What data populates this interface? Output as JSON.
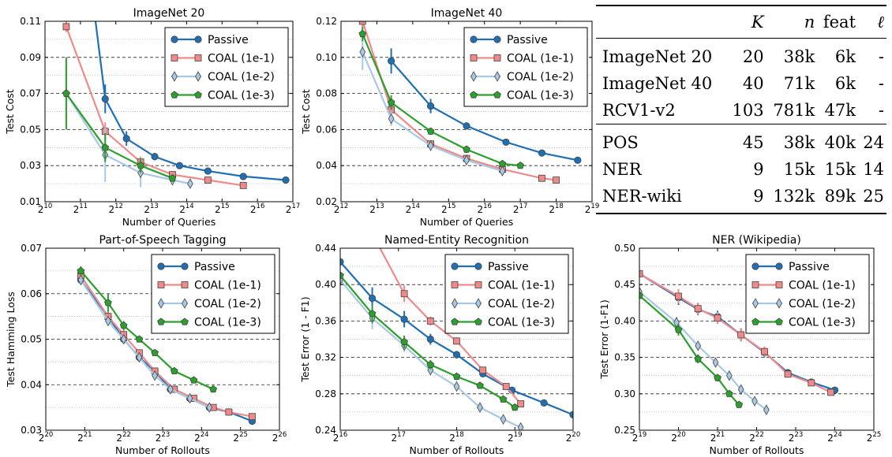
{
  "series_styles": {
    "Passive": {
      "color": "#1f6fb4",
      "marker": "circle"
    },
    "COAL (1e-1)": {
      "color": "#f08a8a",
      "marker": "square"
    },
    "COAL (1e-2)": {
      "color": "#a8c8e4",
      "marker": "diamond"
    },
    "COAL (1e-3)": {
      "color": "#2ca02c",
      "marker": "pentagon"
    }
  },
  "chart_data": [
    {
      "type": "line",
      "title": "ImageNet 20",
      "xlabel": "Number of Queries",
      "ylabel": "Test Cost",
      "xscale": "log2",
      "xlim": [
        10,
        17
      ],
      "xtick_exponents": [
        "10",
        "11",
        "12",
        "13",
        "14",
        "15",
        "16",
        "17"
      ],
      "ylim": [
        0.01,
        0.11
      ],
      "yticks": [
        "0.01",
        "0.03",
        "0.05",
        "0.07",
        "0.09",
        "0.11"
      ],
      "grid": "y",
      "legend": "top-right",
      "series": [
        {
          "name": "Passive",
          "x_exp": [
            11.3,
            11.7,
            12.3,
            13.1,
            13.8,
            14.6,
            15.6,
            16.8
          ],
          "y": [
            0.13,
            0.067,
            0.045,
            0.035,
            0.03,
            0.027,
            0.024,
            0.022
          ],
          "err": [
            0,
            0.008,
            0.004,
            0.002,
            0.001,
            0.001,
            0.001,
            0.001
          ]
        },
        {
          "name": "COAL (1e-1)",
          "x_exp": [
            10.6,
            11.7,
            12.7,
            13.6,
            14.6,
            15.6
          ],
          "y": [
            0.107,
            0.049,
            0.032,
            0.025,
            0.022,
            0.019
          ],
          "err": [
            0.003,
            0.005,
            0.003,
            0.001,
            0.001,
            0.001
          ]
        },
        {
          "name": "COAL (1e-2)",
          "x_exp": [
            10.6,
            11.7,
            12.7,
            13.6,
            14.1
          ],
          "y": [
            0.07,
            0.036,
            0.026,
            0.022,
            0.02
          ],
          "err": [
            0.015,
            0.015,
            0.008,
            0.003,
            0.001
          ]
        },
        {
          "name": "COAL (1e-3)",
          "x_exp": [
            10.6,
            11.7,
            12.7,
            13.6
          ],
          "y": [
            0.07,
            0.04,
            0.03,
            0.023
          ],
          "err": [
            0.02,
            0.008,
            0.004,
            0.002
          ]
        }
      ]
    },
    {
      "type": "line",
      "title": "ImageNet 40",
      "xlabel": "Number of Queries",
      "ylabel": "Test Cost",
      "xscale": "log2",
      "xlim": [
        12,
        19
      ],
      "xtick_exponents": [
        "12",
        "13",
        "14",
        "15",
        "16",
        "17",
        "18",
        "19"
      ],
      "ylim": [
        0.02,
        0.12
      ],
      "yticks": [
        "0.02",
        "0.04",
        "0.06",
        "0.08",
        "0.10",
        "0.12"
      ],
      "grid": "y",
      "legend": "top-right",
      "series": [
        {
          "name": "Passive",
          "x_exp": [
            13.4,
            14.5,
            15.5,
            16.6,
            17.6,
            18.6
          ],
          "y": [
            0.098,
            0.073,
            0.062,
            0.053,
            0.047,
            0.043
          ],
          "err": [
            0.007,
            0.004,
            0.002,
            0.001,
            0.001,
            0.001
          ]
        },
        {
          "name": "COAL (1e-1)",
          "x_exp": [
            12.6,
            13.4,
            14.5,
            15.5,
            16.5,
            17.6,
            18.0
          ],
          "y": [
            0.12,
            0.071,
            0.052,
            0.044,
            0.038,
            0.033,
            0.032
          ],
          "err": [
            0.003,
            0.004,
            0.002,
            0.002,
            0.001,
            0.001,
            0.001
          ]
        },
        {
          "name": "COAL (1e-2)",
          "x_exp": [
            12.6,
            13.4,
            14.5,
            15.5,
            16.5
          ],
          "y": [
            0.103,
            0.066,
            0.051,
            0.043,
            0.037
          ],
          "err": [
            0.01,
            0.004,
            0.002,
            0.002,
            0.001
          ]
        },
        {
          "name": "COAL (1e-3)",
          "x_exp": [
            12.6,
            13.4,
            14.5,
            15.5,
            16.5,
            17.0
          ],
          "y": [
            0.113,
            0.075,
            0.059,
            0.049,
            0.041,
            0.04
          ],
          "err": [
            0.004,
            0.004,
            0.002,
            0.002,
            0.001,
            0.001
          ]
        }
      ]
    },
    {
      "type": "line",
      "title": "Part-of-Speech Tagging",
      "xlabel": "Number of Rollouts",
      "ylabel": "Test Hamming Loss",
      "xscale": "log2",
      "xlim": [
        20,
        26
      ],
      "xtick_exponents": [
        "20",
        "21",
        "22",
        "23",
        "24",
        "25",
        "26"
      ],
      "ylim": [
        0.03,
        0.07
      ],
      "yticks": [
        "0.03",
        "0.04",
        "0.05",
        "0.06",
        "0.07"
      ],
      "grid": "y",
      "legend": "top-right",
      "series": [
        {
          "name": "Passive",
          "x_exp": [
            20.9,
            21.6,
            22.0,
            22.4,
            22.8,
            23.2,
            23.7,
            24.2,
            24.7,
            25.3
          ],
          "y": [
            0.063,
            0.055,
            0.05,
            0.046,
            0.043,
            0.039,
            0.037,
            0.035,
            0.034,
            0.032
          ],
          "err": [
            0.001,
            0.001,
            0.001,
            0.0005,
            0.0005,
            0.0005,
            0.0005,
            0.0005,
            0.0005,
            0.0005
          ]
        },
        {
          "name": "COAL (1e-1)",
          "x_exp": [
            20.9,
            21.6,
            22.0,
            22.4,
            22.8,
            23.3,
            23.8,
            24.3,
            24.7,
            25.3
          ],
          "y": [
            0.064,
            0.055,
            0.051,
            0.047,
            0.043,
            0.039,
            0.037,
            0.035,
            0.034,
            0.033
          ],
          "err": [
            0.001,
            0.001,
            0.001,
            0.0005,
            0.0005,
            0.0005,
            0.0005,
            0.0005,
            0.0005,
            0.0005
          ]
        },
        {
          "name": "COAL (1e-2)",
          "x_exp": [
            20.9,
            21.6,
            22.0,
            22.4,
            22.8,
            23.2,
            23.7,
            24.2
          ],
          "y": [
            0.063,
            0.054,
            0.05,
            0.046,
            0.042,
            0.039,
            0.037,
            0.035
          ],
          "err": [
            0.001,
            0.001,
            0.001,
            0.0005,
            0.0005,
            0.0005,
            0.0005,
            0.0005
          ]
        },
        {
          "name": "COAL (1e-3)",
          "x_exp": [
            20.9,
            21.6,
            22.0,
            22.4,
            22.8,
            23.3,
            23.8,
            24.3
          ],
          "y": [
            0.065,
            0.058,
            0.053,
            0.05,
            0.047,
            0.043,
            0.041,
            0.039
          ],
          "err": [
            0.001,
            0.002,
            0.001,
            0.0005,
            0.0005,
            0.0005,
            0.0005,
            0.0005
          ]
        }
      ]
    },
    {
      "type": "line",
      "title": "Named-Entity Recognition",
      "xlabel": "Number of Rollouts",
      "ylabel": "Test Error (1 - F1)",
      "xscale": "log2",
      "xlim": [
        16,
        20
      ],
      "xtick_exponents": [
        "16",
        "17",
        "18",
        "19",
        "20"
      ],
      "ylim": [
        0.24,
        0.44
      ],
      "yticks": [
        "0.24",
        "0.28",
        "0.32",
        "0.36",
        "0.40",
        "0.44"
      ],
      "grid": "y",
      "legend": "top-right",
      "series": [
        {
          "name": "Passive",
          "x_exp": [
            16.0,
            16.55,
            17.1,
            17.55,
            18.0,
            18.45,
            18.95,
            19.5,
            20.0
          ],
          "y": [
            0.425,
            0.385,
            0.362,
            0.34,
            0.323,
            0.302,
            0.284,
            0.27,
            0.257
          ],
          "err": [
            0,
            0.012,
            0.009,
            0.006,
            0.004,
            0.003,
            0.003,
            0.002,
            0.002
          ]
        },
        {
          "name": "COAL (1e-1)",
          "x_exp": [
            16.6,
            17.1,
            17.55,
            18.0,
            18.45,
            18.85,
            19.1
          ],
          "y": [
            0.45,
            0.39,
            0.36,
            0.338,
            0.306,
            0.288,
            0.269
          ],
          "err": [
            0.01,
            0.009,
            0.005,
            0.004,
            0.003,
            0.003,
            0.002
          ]
        },
        {
          "name": "COAL (1e-2)",
          "x_exp": [
            16.0,
            16.55,
            17.1,
            17.55,
            18.0,
            18.4,
            18.8,
            19.1
          ],
          "y": [
            0.405,
            0.363,
            0.333,
            0.306,
            0.288,
            0.265,
            0.252,
            0.243
          ],
          "err": [
            0,
            0.012,
            0.007,
            0.005,
            0.004,
            0.003,
            0.002,
            0.002
          ]
        },
        {
          "name": "COAL (1e-3)",
          "x_exp": [
            16.0,
            16.55,
            17.1,
            17.55,
            18.0,
            18.4,
            18.8,
            19.0
          ],
          "y": [
            0.41,
            0.368,
            0.337,
            0.312,
            0.299,
            0.289,
            0.274,
            0.265
          ],
          "err": [
            0,
            0.01,
            0.007,
            0.005,
            0.004,
            0.003,
            0.002,
            0.002
          ]
        }
      ]
    },
    {
      "type": "line",
      "title": "NER (Wikipedia)",
      "xlabel": "Number of Rollouts",
      "ylabel": "Test Error (1-F1)",
      "xscale": "log2",
      "xlim": [
        19,
        25
      ],
      "xtick_exponents": [
        "19",
        "20",
        "21",
        "22",
        "23",
        "24",
        "25"
      ],
      "ylim": [
        0.25,
        0.5
      ],
      "yticks": [
        "0.25",
        "0.30",
        "0.35",
        "0.40",
        "0.45",
        "0.50"
      ],
      "grid": "y",
      "legend": "top-right",
      "series": [
        {
          "name": "Passive",
          "x_exp": [
            19.0,
            20.0,
            20.5,
            21.0,
            21.6,
            22.2,
            22.8,
            23.4,
            24.0
          ],
          "y": [
            0.465,
            0.432,
            0.416,
            0.406,
            0.381,
            0.357,
            0.329,
            0.316,
            0.305
          ],
          "err": [
            0,
            0.01,
            0.008,
            0.008,
            0.009,
            0.007,
            0.003,
            0.003,
            0.003
          ]
        },
        {
          "name": "COAL (1e-1)",
          "x_exp": [
            19.0,
            20.0,
            20.5,
            21.0,
            21.6,
            22.2,
            22.8,
            23.4,
            23.9
          ],
          "y": [
            0.465,
            0.434,
            0.417,
            0.404,
            0.381,
            0.358,
            0.327,
            0.315,
            0.302
          ],
          "err": [
            0,
            0.01,
            0.008,
            0.008,
            0.009,
            0.007,
            0.003,
            0.003,
            0.003
          ]
        },
        {
          "name": "COAL (1e-2)",
          "x_exp": [
            19.0,
            19.95,
            20.5,
            20.95,
            21.3,
            21.6,
            21.95,
            22.25
          ],
          "y": [
            0.44,
            0.398,
            0.366,
            0.343,
            0.325,
            0.306,
            0.29,
            0.278
          ],
          "err": [
            0,
            0.008,
            0.005,
            0.004,
            0.003,
            0.003,
            0.003,
            0.003
          ]
        },
        {
          "name": "COAL (1e-3)",
          "x_exp": [
            19.0,
            20.0,
            20.5,
            21.0,
            21.3,
            21.55
          ],
          "y": [
            0.435,
            0.388,
            0.348,
            0.322,
            0.3,
            0.285
          ],
          "err": [
            0,
            0.008,
            0.006,
            0.005,
            0.004,
            0.004
          ]
        }
      ]
    }
  ],
  "table": {
    "headers": [
      "K",
      "n",
      "feat",
      "ℓ"
    ],
    "rows": [
      [
        "ImageNet 20",
        "20",
        "38k",
        "6k",
        "-"
      ],
      [
        "ImageNet 40",
        "40",
        "71k",
        "6k",
        "-"
      ],
      [
        "RCV1-v2",
        "103",
        "781k",
        "47k",
        "-"
      ],
      [
        "POS",
        "45",
        "38k",
        "40k",
        "24"
      ],
      [
        "NER",
        "9",
        "15k",
        "15k",
        "14"
      ],
      [
        "NER-wiki",
        "9",
        "132k",
        "89k",
        "25"
      ]
    ]
  }
}
